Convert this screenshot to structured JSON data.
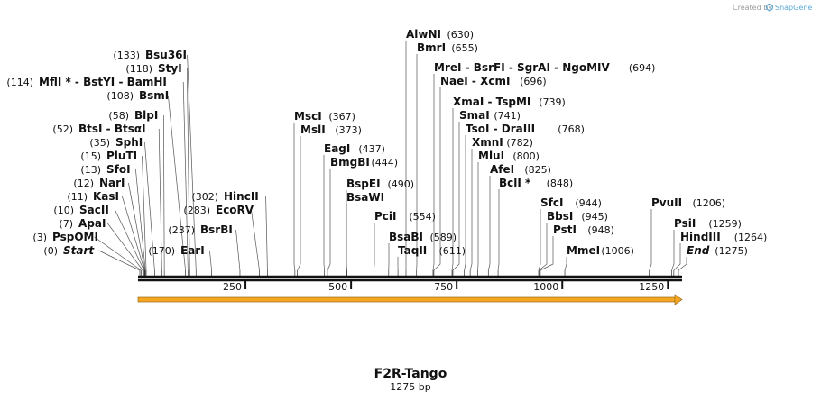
{
  "credit": {
    "prefix": "Created by",
    "brand": "SnapGene"
  },
  "plasmid": {
    "name": "F2R-Tango",
    "length_label": "1275 bp",
    "length": 1275
  },
  "colors": {
    "backbone": "#111111",
    "feature": "#f5a623",
    "feature_dark": "#8a5a0a",
    "credit_brand": "#5aa9d6"
  },
  "ruler_ticks": [
    {
      "pos": 250,
      "label": "250"
    },
    {
      "pos": 500,
      "label": "500"
    },
    {
      "pos": 750,
      "label": "750"
    },
    {
      "pos": 1000,
      "label": "1000"
    },
    {
      "pos": 1250,
      "label": "1250"
    }
  ],
  "sites": [
    {
      "pos": 0,
      "num": "(0)",
      "label": "Start",
      "italic": true,
      "side": "left"
    },
    {
      "pos": 3,
      "num": "(3)",
      "label": "PspOMI",
      "side": "left"
    },
    {
      "pos": 7,
      "num": "(7)",
      "label": "ApaI",
      "side": "left"
    },
    {
      "pos": 10,
      "num": "(10)",
      "label": "SacII",
      "side": "left"
    },
    {
      "pos": 11,
      "num": "(11)",
      "label": "KasI",
      "side": "left"
    },
    {
      "pos": 12,
      "num": "(12)",
      "label": "NarI",
      "side": "left"
    },
    {
      "pos": 13,
      "num": "(13)",
      "label": "SfoI",
      "side": "left"
    },
    {
      "pos": 15,
      "num": "(15)",
      "label": "PluTI",
      "side": "left"
    },
    {
      "pos": 35,
      "num": "(35)",
      "label": "SphI",
      "side": "left"
    },
    {
      "pos": 52,
      "num": "(52)",
      "label": "BtsI - BtsαI",
      "side": "left"
    },
    {
      "pos": 58,
      "num": "(58)",
      "label": "BlpI",
      "side": "left"
    },
    {
      "pos": 108,
      "num": "(108)",
      "label": "BsmI",
      "side": "left"
    },
    {
      "pos": 114,
      "num": "(114)",
      "label": "MflI * - BstYI - BamHI",
      "side": "left"
    },
    {
      "pos": 118,
      "num": "(118)",
      "label": "StyI",
      "side": "left"
    },
    {
      "pos": 133,
      "num": "(133)",
      "label": "Bsu36I",
      "side": "left"
    },
    {
      "pos": 170,
      "num": "(170)",
      "label": "EarI",
      "side": "left"
    },
    {
      "pos": 237,
      "num": "(237)",
      "label": "BsrBI",
      "side": "left"
    },
    {
      "pos": 283,
      "num": "(283)",
      "label": "EcoRV",
      "side": "left"
    },
    {
      "pos": 302,
      "num": "(302)",
      "label": "HincII",
      "side": "left"
    },
    {
      "pos": 367,
      "num": "(367)",
      "label": "MscI",
      "side": "right"
    },
    {
      "pos": 373,
      "num": "(373)",
      "label": "MslI",
      "side": "right"
    },
    {
      "pos": 437,
      "num": "(437)",
      "label": "EagI",
      "side": "right"
    },
    {
      "pos": 444,
      "num": "(444)",
      "label": "BmgBI",
      "side": "right"
    },
    {
      "pos": 490,
      "num": "(490)",
      "label": "BspEI",
      "side": "right"
    },
    {
      "pos": 490,
      "num": "",
      "label": "BsaWI",
      "side": "right"
    },
    {
      "pos": 554,
      "num": "(554)",
      "label": "PciI",
      "side": "right"
    },
    {
      "pos": 589,
      "num": "(589)",
      "label": "BsaBI",
      "side": "right"
    },
    {
      "pos": 611,
      "num": "(611)",
      "label": "TaqII",
      "side": "right"
    },
    {
      "pos": 630,
      "num": "(630)",
      "label": "AlwNI",
      "side": "right"
    },
    {
      "pos": 655,
      "num": "(655)",
      "label": "BmrI",
      "side": "right"
    },
    {
      "pos": 694,
      "num": "(694)",
      "label": "MreI - BsrFI - SgrAI - NgoMIV",
      "side": "right"
    },
    {
      "pos": 696,
      "num": "(696)",
      "label": "NaeI - XcmI",
      "side": "right"
    },
    {
      "pos": 739,
      "num": "(739)",
      "label": "XmaI - TspMI",
      "side": "right"
    },
    {
      "pos": 741,
      "num": "(741)",
      "label": "SmaI",
      "side": "right"
    },
    {
      "pos": 768,
      "num": "(768)",
      "label": "TsoI - DraIII",
      "side": "right"
    },
    {
      "pos": 782,
      "num": "(782)",
      "label": "XmnI",
      "side": "right"
    },
    {
      "pos": 800,
      "num": "(800)",
      "label": "MluI",
      "side": "right"
    },
    {
      "pos": 825,
      "num": "(825)",
      "label": "AfeI",
      "side": "right"
    },
    {
      "pos": 848,
      "num": "(848)",
      "label": "BclI *",
      "side": "right"
    },
    {
      "pos": 944,
      "num": "(944)",
      "label": "SfcI",
      "side": "right"
    },
    {
      "pos": 945,
      "num": "(945)",
      "label": "BbsI",
      "side": "right"
    },
    {
      "pos": 948,
      "num": "(948)",
      "label": "PstI",
      "side": "right"
    },
    {
      "pos": 1006,
      "num": "(1006)",
      "label": "MmeI",
      "side": "right"
    },
    {
      "pos": 1206,
      "num": "(1206)",
      "label": "PvuII",
      "side": "right"
    },
    {
      "pos": 1259,
      "num": "(1259)",
      "label": "PsiI",
      "side": "right"
    },
    {
      "pos": 1264,
      "num": "(1264)",
      "label": "HindIII",
      "side": "right"
    },
    {
      "pos": 1275,
      "num": "(1275)",
      "label": "End",
      "italic": true,
      "side": "right"
    }
  ]
}
